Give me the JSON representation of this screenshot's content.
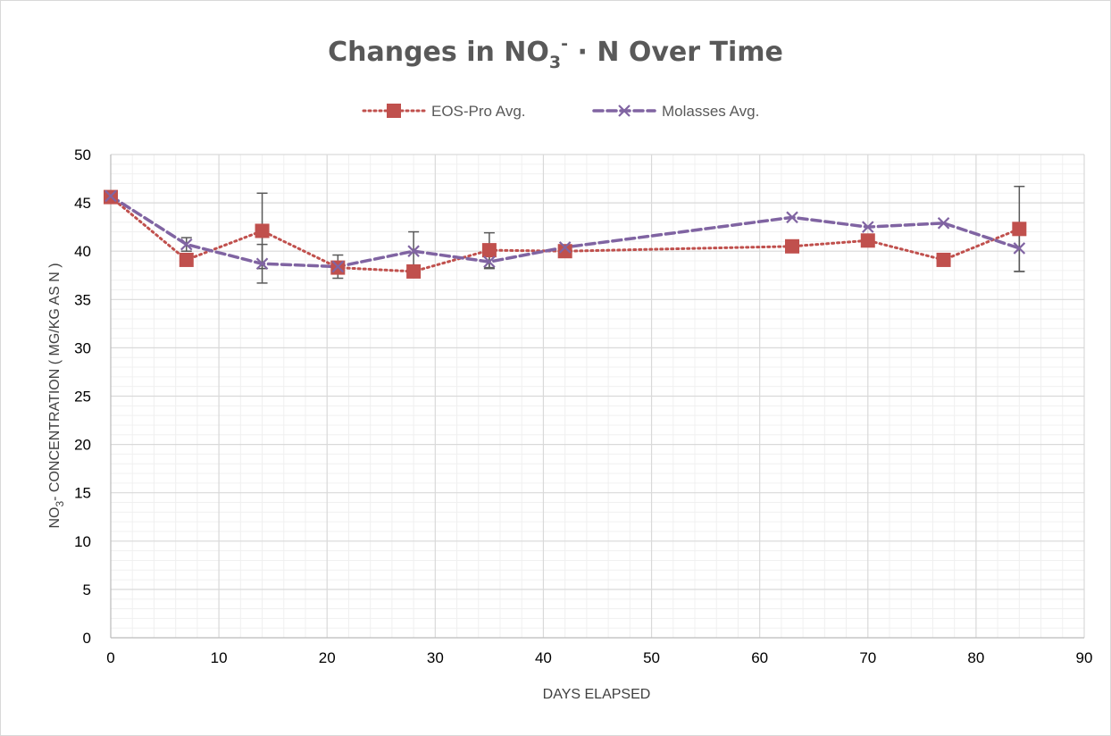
{
  "chart_data": {
    "type": "line",
    "title": {
      "main": "Changes in NO",
      "sub": "3",
      "sup": "-",
      "rest": " · N Over Time"
    },
    "xlabel": "DAYS ELAPSED",
    "ylabel": {
      "pre": "NO",
      "sub": "3",
      "post": "- CONCENTRATION ( MG/KG AS N )"
    },
    "xlim": [
      0,
      90
    ],
    "ylim": [
      0,
      50
    ],
    "x_ticks": [
      0,
      10,
      20,
      30,
      40,
      50,
      60,
      70,
      80,
      90
    ],
    "y_ticks": [
      0,
      5,
      10,
      15,
      20,
      25,
      30,
      35,
      40,
      45,
      50
    ],
    "grid": true,
    "legend_position": "top",
    "series": [
      {
        "name": "EOS-Pro Avg.",
        "color": "#c0504d",
        "marker": "square",
        "line_style": "dotted",
        "x": [
          0,
          7,
          14,
          21,
          28,
          35,
          42,
          63,
          70,
          77,
          84
        ],
        "y": [
          45.6,
          39.1,
          42.1,
          38.3,
          37.9,
          40.1,
          40.0,
          40.5,
          41.1,
          39.1,
          42.3
        ],
        "error": [
          0,
          0,
          3.9,
          0,
          0,
          1.8,
          0,
          0,
          0,
          0,
          4.4
        ]
      },
      {
        "name": "Molasses Avg.",
        "color": "#8064a2",
        "marker": "x",
        "line_style": "dashed",
        "x": [
          0,
          7,
          14,
          21,
          28,
          35,
          42,
          63,
          70,
          77,
          84
        ],
        "y": [
          45.7,
          40.7,
          38.7,
          38.4,
          40.0,
          38.9,
          40.4,
          43.5,
          42.5,
          42.9,
          40.3
        ],
        "error": [
          0,
          0.7,
          2.0,
          1.2,
          2.0,
          0.7,
          0,
          0,
          0,
          0,
          2.4
        ]
      }
    ]
  }
}
